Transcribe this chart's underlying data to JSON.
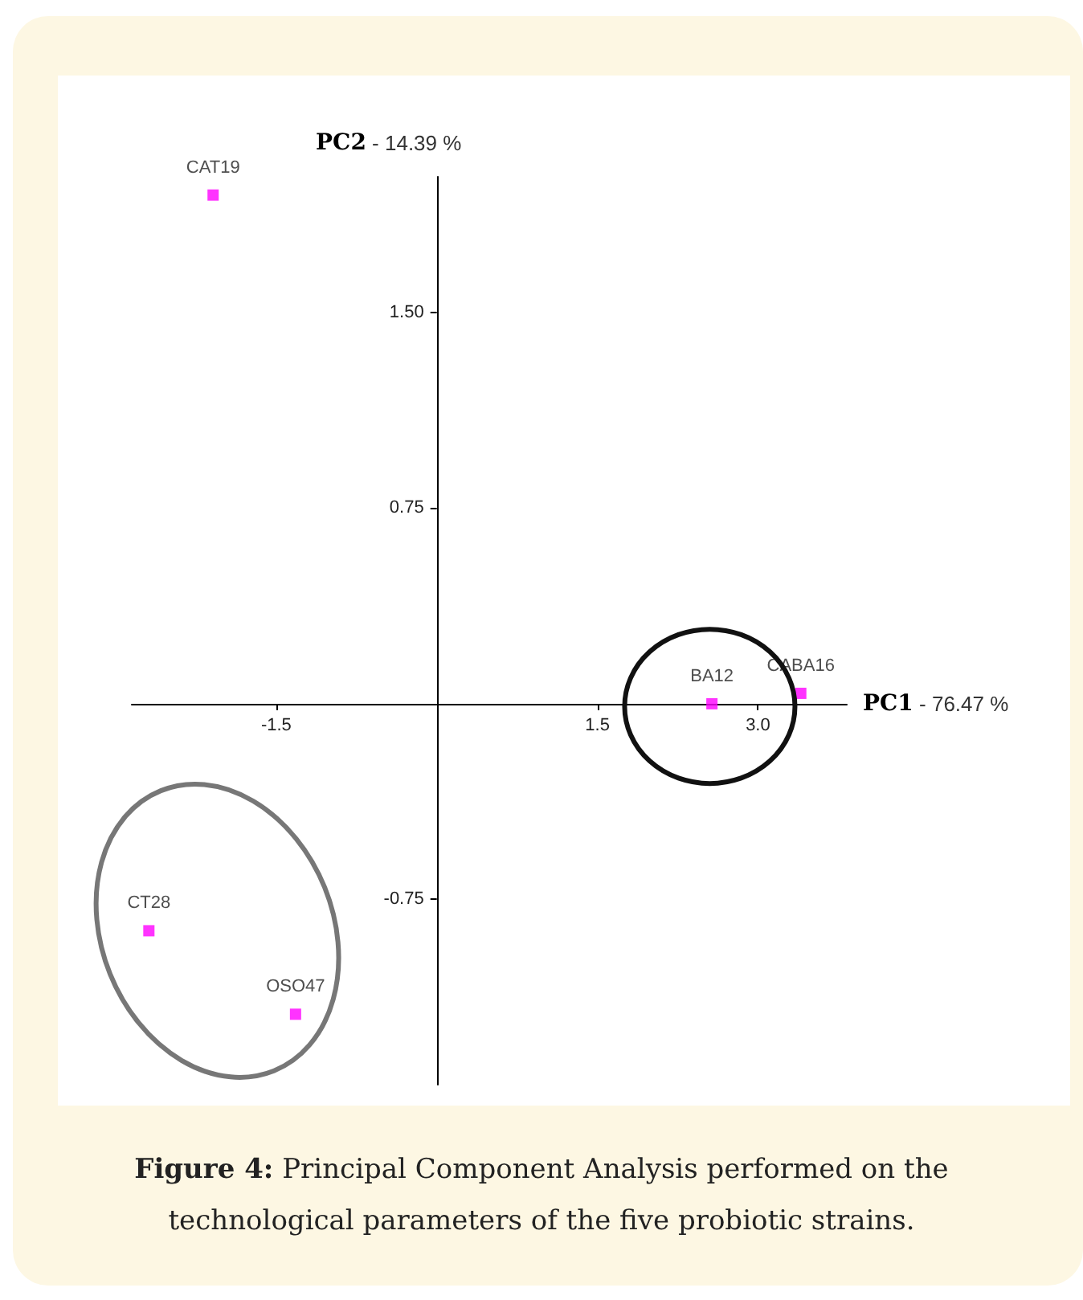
{
  "chart_data": {
    "type": "scatter",
    "xlabel": "PC1 - 76.47 %",
    "ylabel": "PC2 - 14.39 %",
    "annotations": [
      "Figure 4: Principal Component Analysis performed on the technological parameters of the five probiotic strains."
    ],
    "series": [
      {
        "name": "CAT19",
        "color": "#ff00ff",
        "x": [
          -2.09
        ],
        "values": [
          1.95
        ]
      },
      {
        "name": "BA12",
        "color": "#ff00ff",
        "x": [
          2.57
        ],
        "values": [
          0
        ]
      },
      {
        "name": "CABA16",
        "color": "#ff00ff",
        "x": [
          3.4
        ],
        "values": [
          0.04
        ]
      },
      {
        "name": "CT28",
        "color": "#ff00ff",
        "x": [
          -2.69
        ],
        "values": [
          -0.87
        ]
      },
      {
        "name": "OSO47",
        "color": "#ff00ff",
        "x": [
          -1.32
        ],
        "values": [
          -1.19
        ]
      }
    ],
    "xlim": [
      -2.85,
      3.83
    ],
    "ylim": [
      -1.46,
      2.02
    ],
    "xticks": [
      -1.5,
      1.5,
      {
        "value": 3,
        "label": "3.0"
      }
    ],
    "yticks": [
      {
        "value": -0.75,
        "label": "-0.75"
      },
      0.75,
      {
        "value": 1.5,
        "label": "1.50"
      }
    ],
    "marker": "square",
    "grid": false,
    "legend": false
  }
}
